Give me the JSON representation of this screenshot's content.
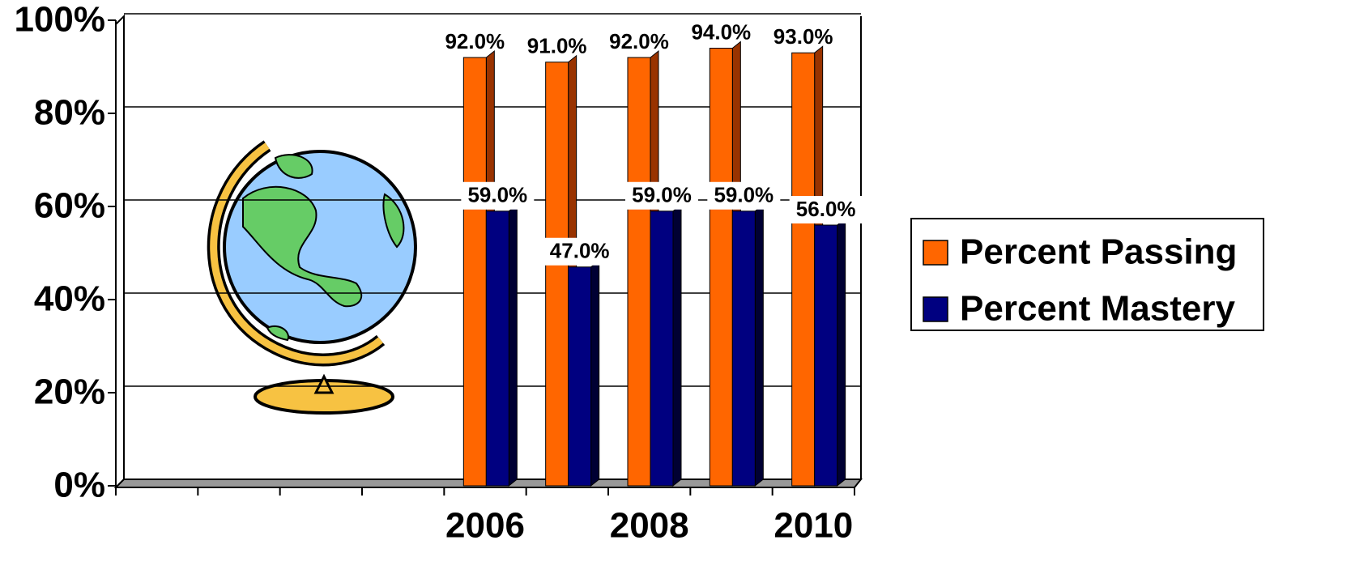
{
  "chart_data": {
    "type": "bar",
    "categories": [
      null,
      null,
      null,
      null,
      "2006",
      null,
      "2008",
      null,
      "2010"
    ],
    "series": [
      {
        "name": "Percent Passing",
        "color": "#ff6600",
        "values": [
          null,
          null,
          null,
          null,
          92,
          91,
          92,
          94,
          93
        ],
        "value_labels": [
          null,
          null,
          null,
          null,
          "92.0%",
          "91.0%",
          "92.0%",
          "94.0%",
          "93.0%"
        ]
      },
      {
        "name": "Percent Mastery",
        "color": "#000080",
        "values": [
          null,
          null,
          null,
          null,
          59,
          47,
          59,
          59,
          56
        ],
        "value_labels": [
          null,
          null,
          null,
          null,
          "59.0%",
          "47.0%",
          "59.0%",
          "59.0%",
          "56.0%"
        ]
      }
    ],
    "ylim": [
      0,
      100
    ],
    "yticks": [
      {
        "value": 0,
        "label": "0%"
      },
      {
        "value": 20,
        "label": "20%"
      },
      {
        "value": 40,
        "label": "40%"
      },
      {
        "value": 60,
        "label": "60%"
      },
      {
        "value": 80,
        "label": "80%"
      },
      {
        "value": 100,
        "label": "100%"
      }
    ],
    "grid": true,
    "legend": "right"
  }
}
